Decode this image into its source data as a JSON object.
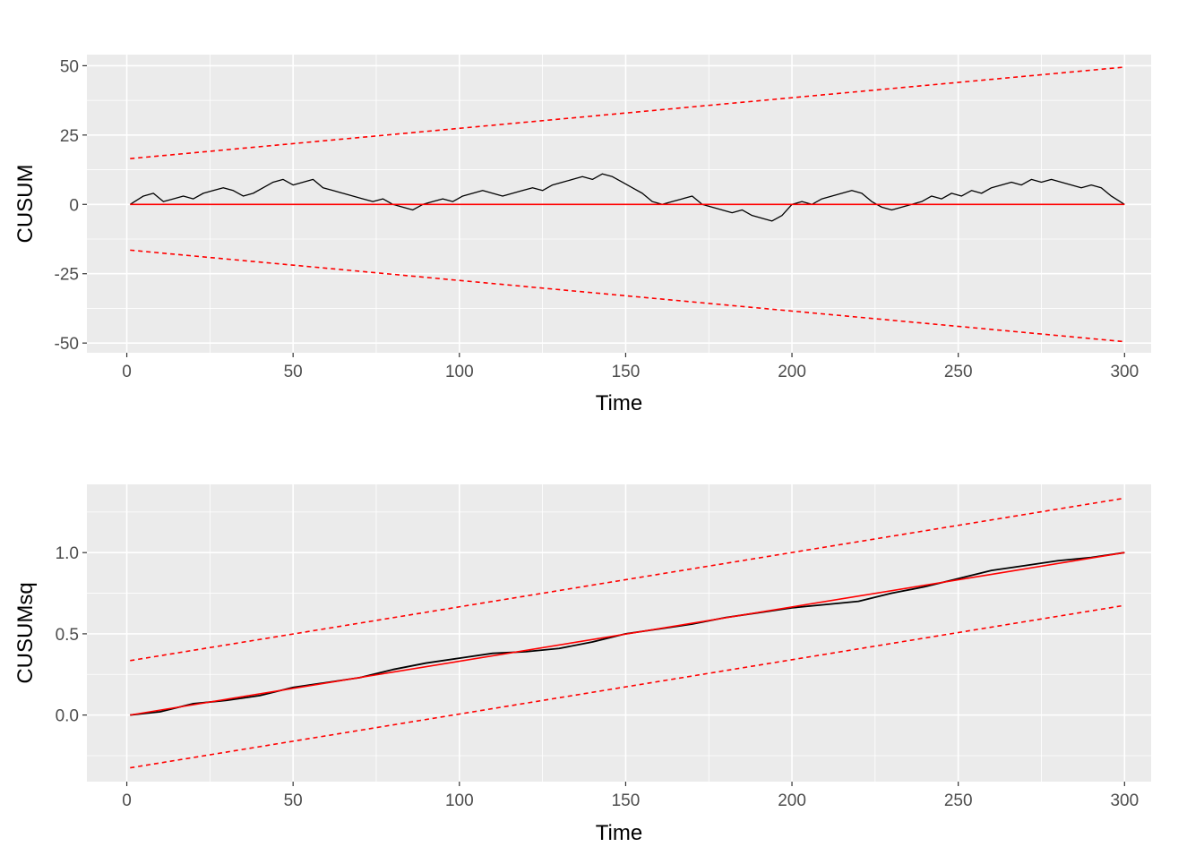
{
  "colors": {
    "panel_background": "#ebebeb",
    "grid_major": "#ffffff",
    "cusum_line": "#000000",
    "reference_line": "#ff0000",
    "bound_line": "#ff0000"
  },
  "chart_data": [
    {
      "type": "line",
      "xlabel": "Time",
      "ylabel": "CUSUM",
      "xlim": [
        -12,
        308
      ],
      "ylim": [
        -53.5,
        54
      ],
      "xticks": [
        0,
        50,
        100,
        150,
        200,
        250,
        300
      ],
      "yticks": [
        -50,
        -25,
        0,
        25,
        50
      ],
      "grid": true,
      "legend": "none",
      "series": [
        {
          "role": "cusum",
          "color": "#000000",
          "style": "solid",
          "x": [
            1,
            5,
            8,
            11,
            14,
            17,
            20,
            23,
            26,
            29,
            32,
            35,
            38,
            41,
            44,
            47,
            50,
            53,
            56,
            59,
            62,
            65,
            68,
            71,
            74,
            77,
            80,
            83,
            86,
            89,
            92,
            95,
            98,
            101,
            104,
            107,
            110,
            113,
            116,
            119,
            122,
            125,
            128,
            131,
            134,
            137,
            140,
            143,
            146,
            149,
            152,
            155,
            158,
            161,
            164,
            167,
            170,
            173,
            176,
            179,
            182,
            185,
            188,
            191,
            194,
            197,
            200,
            203,
            206,
            209,
            212,
            215,
            218,
            221,
            224,
            227,
            230,
            233,
            236,
            239,
            242,
            245,
            248,
            251,
            254,
            257,
            260,
            263,
            266,
            269,
            272,
            275,
            278,
            281,
            284,
            287,
            290,
            293,
            296,
            300
          ],
          "y": [
            0,
            3,
            4,
            1,
            2,
            3,
            2,
            4,
            5,
            6,
            5,
            3,
            4,
            6,
            8,
            9,
            7,
            8,
            9,
            6,
            5,
            4,
            3,
            2,
            1,
            2,
            0,
            -1,
            -2,
            0,
            1,
            2,
            1,
            3,
            4,
            5,
            4,
            3,
            4,
            5,
            6,
            5,
            7,
            8,
            9,
            10,
            9,
            11,
            10,
            8,
            6,
            4,
            1,
            0,
            1,
            2,
            3,
            0,
            -1,
            -2,
            -3,
            -2,
            -4,
            -5,
            -6,
            -4,
            0,
            1,
            0,
            2,
            3,
            4,
            5,
            4,
            1,
            -1,
            -2,
            -1,
            0,
            1,
            3,
            2,
            4,
            3,
            5,
            4,
            6,
            7,
            8,
            7,
            9,
            8,
            9,
            8,
            7,
            6,
            7,
            6,
            3,
            0
          ]
        },
        {
          "role": "reference",
          "color": "#ff0000",
          "style": "solid",
          "x": [
            1,
            300
          ],
          "y": [
            0,
            0
          ]
        },
        {
          "role": "upper-bound",
          "color": "#ff0000",
          "style": "dashed",
          "x": [
            1,
            300
          ],
          "y": [
            16.5,
            49.5
          ]
        },
        {
          "role": "lower-bound",
          "color": "#ff0000",
          "style": "dashed",
          "x": [
            1,
            300
          ],
          "y": [
            -16.5,
            -49.5
          ]
        }
      ]
    },
    {
      "type": "line",
      "xlabel": "Time",
      "ylabel": "CUSUMsq",
      "xlim": [
        -12,
        308
      ],
      "ylim": [
        -0.41,
        1.42
      ],
      "xticks": [
        0,
        50,
        100,
        150,
        200,
        250,
        300
      ],
      "yticks": [
        0.0,
        0.5,
        1.0
      ],
      "ytick_labels": [
        "0.0",
        "0.5",
        "1.0"
      ],
      "grid": true,
      "legend": "none",
      "series": [
        {
          "role": "cusum-squared",
          "color": "#000000",
          "style": "solid",
          "x": [
            1,
            10,
            20,
            30,
            40,
            50,
            60,
            70,
            80,
            90,
            100,
            110,
            120,
            130,
            140,
            150,
            160,
            170,
            180,
            190,
            200,
            210,
            220,
            230,
            240,
            250,
            260,
            270,
            280,
            290,
            300
          ],
          "y": [
            0.0,
            0.02,
            0.07,
            0.09,
            0.12,
            0.17,
            0.2,
            0.23,
            0.28,
            0.32,
            0.35,
            0.38,
            0.39,
            0.41,
            0.45,
            0.5,
            0.53,
            0.56,
            0.6,
            0.63,
            0.66,
            0.68,
            0.7,
            0.75,
            0.79,
            0.84,
            0.89,
            0.92,
            0.95,
            0.97,
            1.0
          ]
        },
        {
          "role": "reference",
          "color": "#ff0000",
          "style": "solid",
          "x": [
            1,
            300
          ],
          "y": [
            0,
            1
          ]
        },
        {
          "role": "upper-bound",
          "color": "#ff0000",
          "style": "dashed",
          "x": [
            1,
            300
          ],
          "y": [
            0.335,
            1.335
          ]
        },
        {
          "role": "lower-bound",
          "color": "#ff0000",
          "style": "dashed",
          "x": [
            1,
            300
          ],
          "y": [
            -0.325,
            0.675
          ]
        }
      ]
    }
  ]
}
